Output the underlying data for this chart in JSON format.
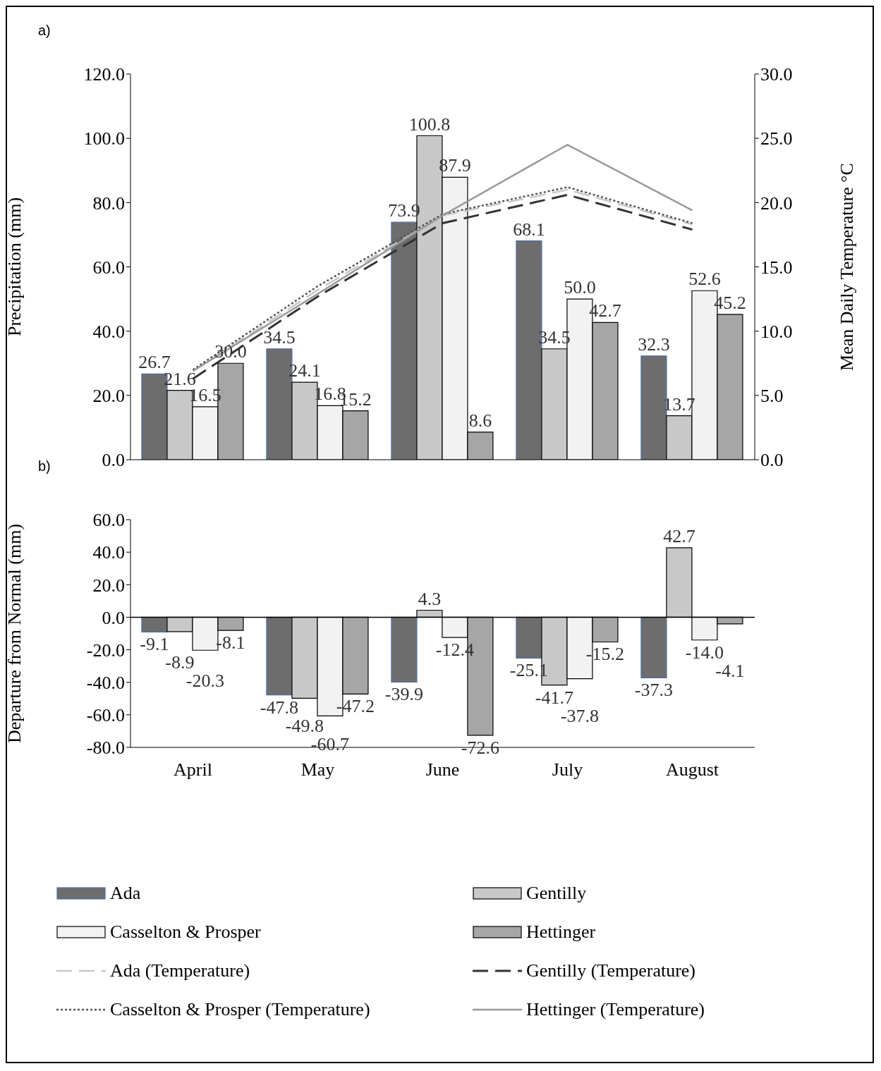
{
  "chart_data": [
    {
      "type": "bar",
      "title": "a)",
      "ylabel": "Precipitation (mm)",
      "y2label": "Mean Daily Temperature °C",
      "categories": [
        null,
        null,
        null,
        null,
        null
      ],
      "series": [
        {
          "name": "Ada",
          "color": "#6d6d6d",
          "values": [
            26.7,
            34.5,
            73.9,
            68.1,
            32.3
          ],
          "value_labels": [
            "26.7",
            "34.5",
            "73.9",
            "68.1",
            "32.3"
          ]
        },
        {
          "name": "Gentilly",
          "color": "#c8c8c8",
          "values": [
            21.6,
            24.1,
            100.8,
            34.5,
            13.7
          ],
          "value_labels": [
            "21.6",
            "24.1",
            "100.8",
            "34.5",
            "13.7"
          ]
        },
        {
          "name": "Casselton & Prosper",
          "color": "#f2f2f2",
          "values": [
            16.5,
            16.8,
            87.9,
            50.0,
            52.6
          ],
          "value_labels": [
            "16.5",
            "16.8",
            "87.9",
            "50.0",
            "52.6"
          ]
        },
        {
          "name": "Hettinger",
          "color": "#a6a6a6",
          "values": [
            30.0,
            15.2,
            8.6,
            42.7,
            45.2
          ],
          "value_labels": [
            "30.0",
            "15.2",
            "8.6",
            "42.7",
            "45.2"
          ]
        },
        {
          "name": "Ada (Temperature)",
          "type": "line",
          "axis": "y2",
          "color": "#c8c8c8",
          "line_style": "dashed",
          "values": [
            6.9,
            13.2,
            19.0,
            21.0,
            18.3
          ]
        },
        {
          "name": "Gentilly (Temperature)",
          "type": "line",
          "axis": "y2",
          "color": "#333333",
          "line_style": "dashed",
          "values": [
            6.3,
            12.7,
            18.4,
            20.6,
            17.9
          ]
        },
        {
          "name": "Casselton & Prosper (Temperature)",
          "type": "line",
          "axis": "y2",
          "color": "#555555",
          "line_style": "dotted",
          "values": [
            7.0,
            13.5,
            19.1,
            21.2,
            18.4
          ]
        },
        {
          "name": "Hettinger (Temperature)",
          "type": "line",
          "axis": "y2",
          "color": "#999999",
          "line_style": "solid",
          "values": [
            6.9,
            12.9,
            19.0,
            24.5,
            19.4
          ]
        }
      ],
      "ylim": [
        0,
        120
      ],
      "yticks": [
        {
          "value": 0,
          "label": "0.0"
        },
        {
          "value": 20,
          "label": "20.0"
        },
        {
          "value": 40,
          "label": "40.0"
        },
        {
          "value": 60,
          "label": "60.0"
        },
        {
          "value": 80,
          "label": "80.0"
        },
        {
          "value": 100,
          "label": "100.0"
        },
        {
          "value": 120,
          "label": "120.0"
        }
      ],
      "y2lim": [
        0,
        30
      ],
      "y2ticks": [
        {
          "value": 0,
          "label": "0.0"
        },
        {
          "value": 5,
          "label": "5.0"
        },
        {
          "value": 10,
          "label": "10.0"
        },
        {
          "value": 15,
          "label": "15.0"
        },
        {
          "value": 20,
          "label": "20.0"
        },
        {
          "value": 25,
          "label": "25.0"
        },
        {
          "value": 30,
          "label": "30.0"
        }
      ],
      "grid": false,
      "marker": "none",
      "legend": "bottom"
    },
    {
      "type": "bar",
      "title": "b)",
      "ylabel": "Departure from Normal (mm)",
      "categories": [
        "April",
        "May",
        "June",
        "July",
        "August"
      ],
      "series": [
        {
          "color": "#6d6d6d",
          "values": [
            -9.1,
            -47.8,
            -39.9,
            -25.1,
            -37.3
          ],
          "value_labels": [
            "-9.1",
            "-47.8",
            "-39.9",
            "-25.1",
            "-37.3"
          ]
        },
        {
          "color": "#c8c8c8",
          "values": [
            -8.9,
            -49.8,
            4.3,
            -41.7,
            42.7
          ],
          "value_labels": [
            "-8.9",
            "-49.8",
            "4.3",
            "-41.7",
            "42.7"
          ]
        },
        {
          "color": "#f2f2f2",
          "values": [
            -20.3,
            -60.7,
            -12.4,
            -37.8,
            -14.0
          ],
          "value_labels": [
            "-20.3",
            "-60.7",
            "-12.4",
            "-37.8",
            "-14.0"
          ]
        },
        {
          "color": "#a6a6a6",
          "values": [
            -8.1,
            -47.2,
            -72.6,
            -15.2,
            -4.1
          ],
          "value_labels": [
            "-8.1",
            "-47.2",
            "-72.6",
            "-15.2",
            "-4.1"
          ]
        }
      ],
      "ylim": [
        -80,
        60
      ],
      "yticks": [
        {
          "value": -80,
          "label": "-80.0"
        },
        {
          "value": -60,
          "label": "-60.0"
        },
        {
          "value": -40,
          "label": "-40.0"
        },
        {
          "value": -20,
          "label": "-20.0"
        },
        {
          "value": 0,
          "label": "0.0"
        },
        {
          "value": 20,
          "label": "20.0"
        },
        {
          "value": 40,
          "label": "40.0"
        },
        {
          "value": 60,
          "label": "60.0"
        }
      ],
      "ref_lines": [
        {
          "axis": "y",
          "value": 0,
          "color": "#000000"
        }
      ],
      "grid": false
    }
  ]
}
